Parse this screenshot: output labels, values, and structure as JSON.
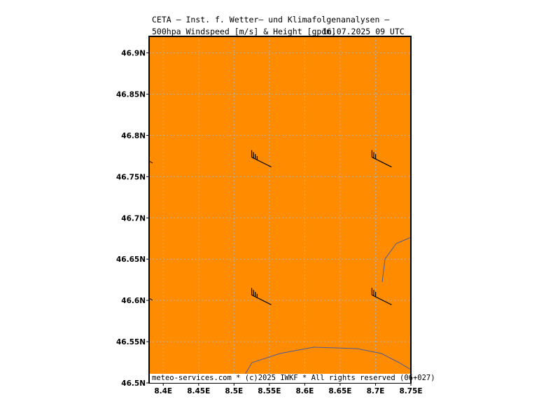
{
  "header": {
    "title_line1": "CETA – Inst. f. Wetter– und Klimafolgenanalysen –",
    "title_line2": "500hpa Windspeed [m/s] & Height [gpdm]",
    "datetime": "16.07.2025 09 UTC"
  },
  "map": {
    "projection": "lat-lon",
    "lon_range": [
      8.38,
      8.75
    ],
    "lat_range": [
      46.5,
      46.92
    ],
    "background_color": "#ff8c00",
    "grid": "dotted",
    "lat_ticks": [
      "46.9N",
      "46.85N",
      "46.8N",
      "46.75N",
      "46.7N",
      "46.65N",
      "46.6N",
      "46.55N",
      "46.5N"
    ],
    "lon_ticks": [
      "8.4E",
      "8.45E",
      "8.5E",
      "8.55E",
      "8.6E",
      "8.65E",
      "8.7E",
      "8.75E"
    ],
    "lat_values": [
      46.9,
      46.85,
      46.8,
      46.75,
      46.7,
      46.65,
      46.6,
      46.55,
      46.5
    ],
    "lon_values": [
      8.4,
      8.45,
      8.5,
      8.55,
      8.6,
      8.65,
      8.7,
      8.75
    ],
    "wind_barbs": [
      {
        "lon": 8.525,
        "lat": 46.777,
        "direction": "northwest",
        "flags": 4
      },
      {
        "lon": 8.695,
        "lat": 46.777,
        "direction": "northwest",
        "flags": 3
      },
      {
        "lon": 8.525,
        "lat": 46.61,
        "direction": "northwest",
        "flags": 4
      },
      {
        "lon": 8.695,
        "lat": 46.61,
        "direction": "northwest",
        "flags": 3
      }
    ],
    "border_color": "#4a5a9a"
  },
  "footer": {
    "credit": "meteo-services.com * (c)2025 IWKF * All rights reserved (06+027)"
  }
}
